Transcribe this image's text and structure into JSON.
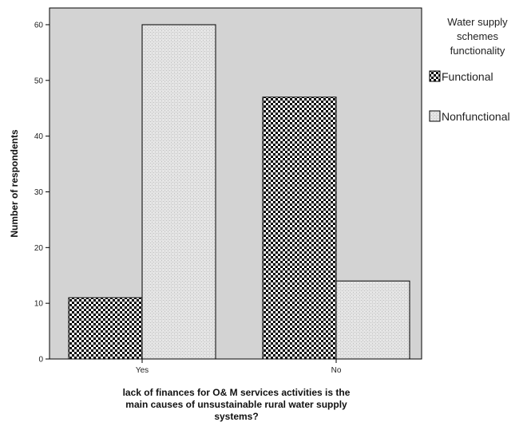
{
  "chart_data": {
    "type": "bar",
    "categories": [
      "Yes",
      "No"
    ],
    "series": [
      {
        "name": "Functional",
        "values": [
          11,
          47
        ],
        "pattern": "checker"
      },
      {
        "name": "Nonfunctional",
        "values": [
          60,
          14
        ],
        "pattern": "dots"
      }
    ],
    "ylabel": "Number of respondents",
    "xlabel_lines": [
      "lack of finances for O& M services activities  is the",
      "main causes of unsustainable rural water supply",
      "systems?"
    ],
    "yticks": [
      0,
      10,
      20,
      30,
      40,
      50,
      60
    ],
    "ylim": [
      0,
      63
    ],
    "grid": false,
    "legend": {
      "title_lines": [
        "Water supply",
        "schemes",
        "functionality"
      ],
      "placement": "right"
    },
    "colors": {
      "plot_background": "#d3d3d3",
      "bar_outline": "#000000",
      "checker_dark": "#000000",
      "checker_light": "#ffffff",
      "dots_base": "#e6e6e6",
      "dots_mark": "#bdbdbd"
    }
  }
}
